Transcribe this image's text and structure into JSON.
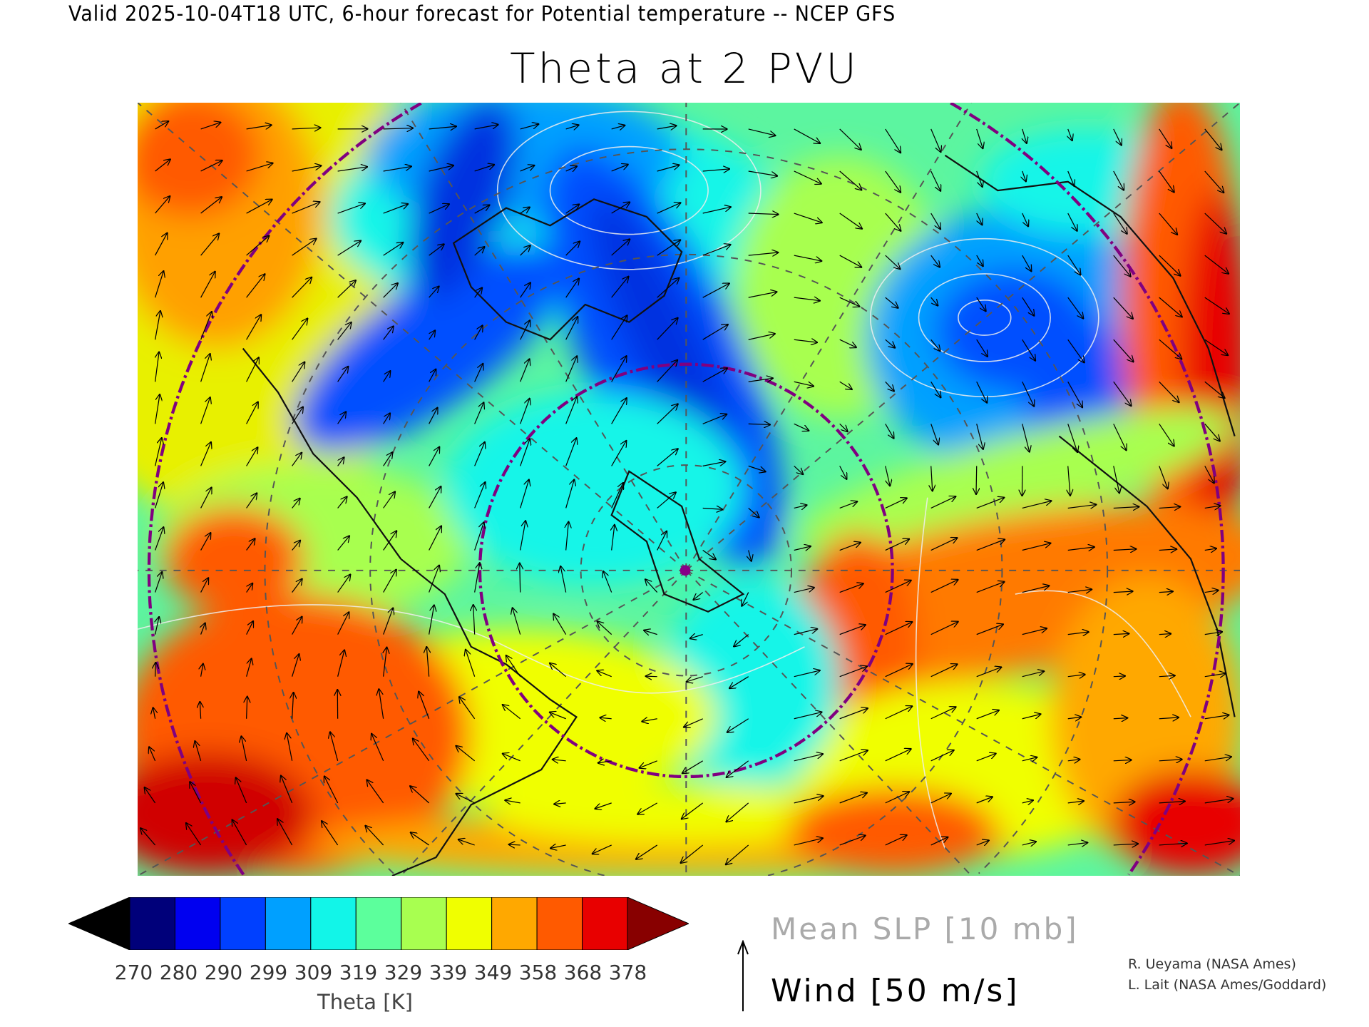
{
  "header": {
    "subtitle": "Valid 2025-10-04T18 UTC, 6-hour forecast for Potential temperature -- NCEP GFS",
    "title": "Theta at 2 PVU"
  },
  "colorbar": {
    "label": "Theta [K]",
    "ticks": [
      "270",
      "280",
      "290",
      "299",
      "309",
      "319",
      "329",
      "339",
      "349",
      "358",
      "368",
      "378"
    ],
    "colors": [
      "#000000",
      "#00007a",
      "#0000f0",
      "#0040ff",
      "#00a0ff",
      "#12f5e8",
      "#5cff9c",
      "#a8ff50",
      "#f0ff00",
      "#ffa800",
      "#ff5a00",
      "#e80000",
      "#880000"
    ]
  },
  "legend": {
    "slp": "Mean SLP [10 mb]",
    "wind": "Wind [50 m/s]"
  },
  "credits": [
    "R. Ueyama (NASA Ames)",
    "L. Lait (NASA Ames/Goddard)"
  ],
  "map": {
    "marker_color": "#880088",
    "circle_color": "#800080"
  }
}
